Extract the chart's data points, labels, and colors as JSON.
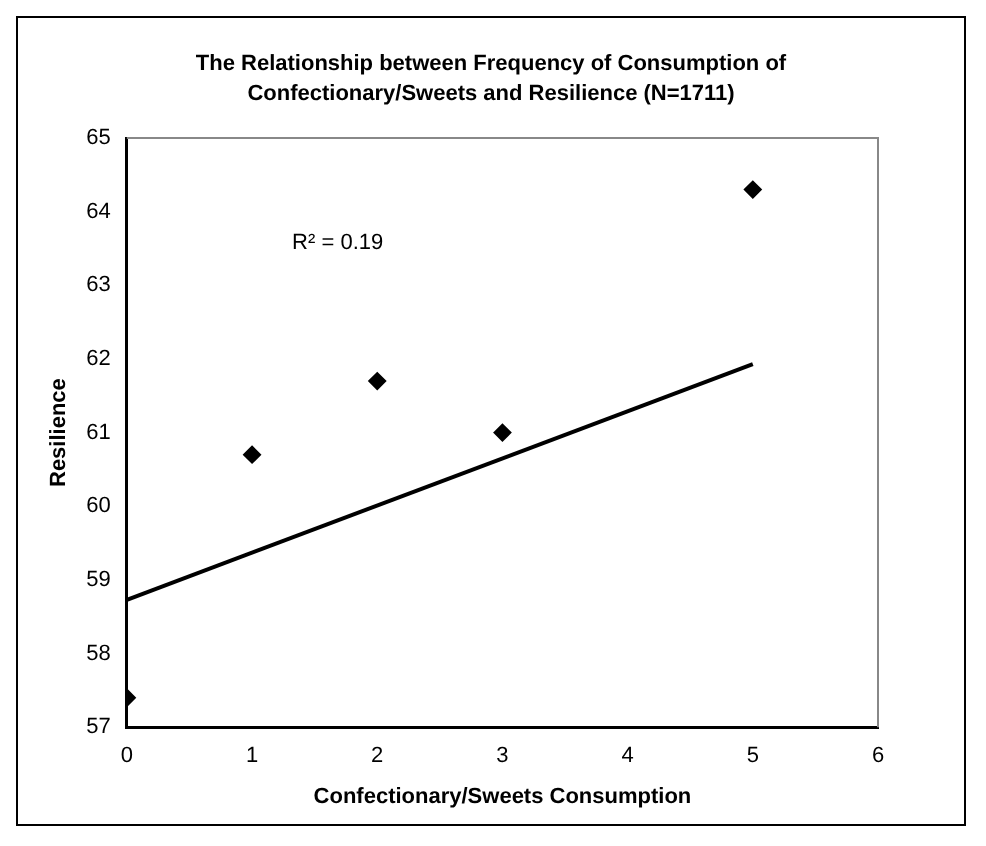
{
  "chart_data": {
    "type": "scatter",
    "title": "The Relationship between Frequency of Consumption of Confectionary/Sweets and Resilience (N=1711)",
    "xlabel": "Confectionary/Sweets Consumption",
    "ylabel": "Resilience",
    "x": [
      0,
      1,
      2,
      3,
      5
    ],
    "series": [
      {
        "color": "#000000",
        "marker": "diamond",
        "values": [
          57.4,
          60.7,
          61.7,
          61.0,
          64.3
        ]
      },
      {
        "type": "line",
        "color": "#000000",
        "marker": "none",
        "x": [
          0,
          5
        ],
        "values": [
          58.73,
          61.93
        ]
      }
    ],
    "xlim": [
      0,
      6
    ],
    "xticks": [
      0,
      1,
      2,
      3,
      4,
      5,
      6
    ],
    "ylim": [
      57,
      65
    ],
    "yticks": [
      57,
      58,
      59,
      60,
      61,
      62,
      63,
      64,
      65
    ],
    "grid": false,
    "legend": false,
    "annotations": [
      "R² = 0.19"
    ]
  }
}
